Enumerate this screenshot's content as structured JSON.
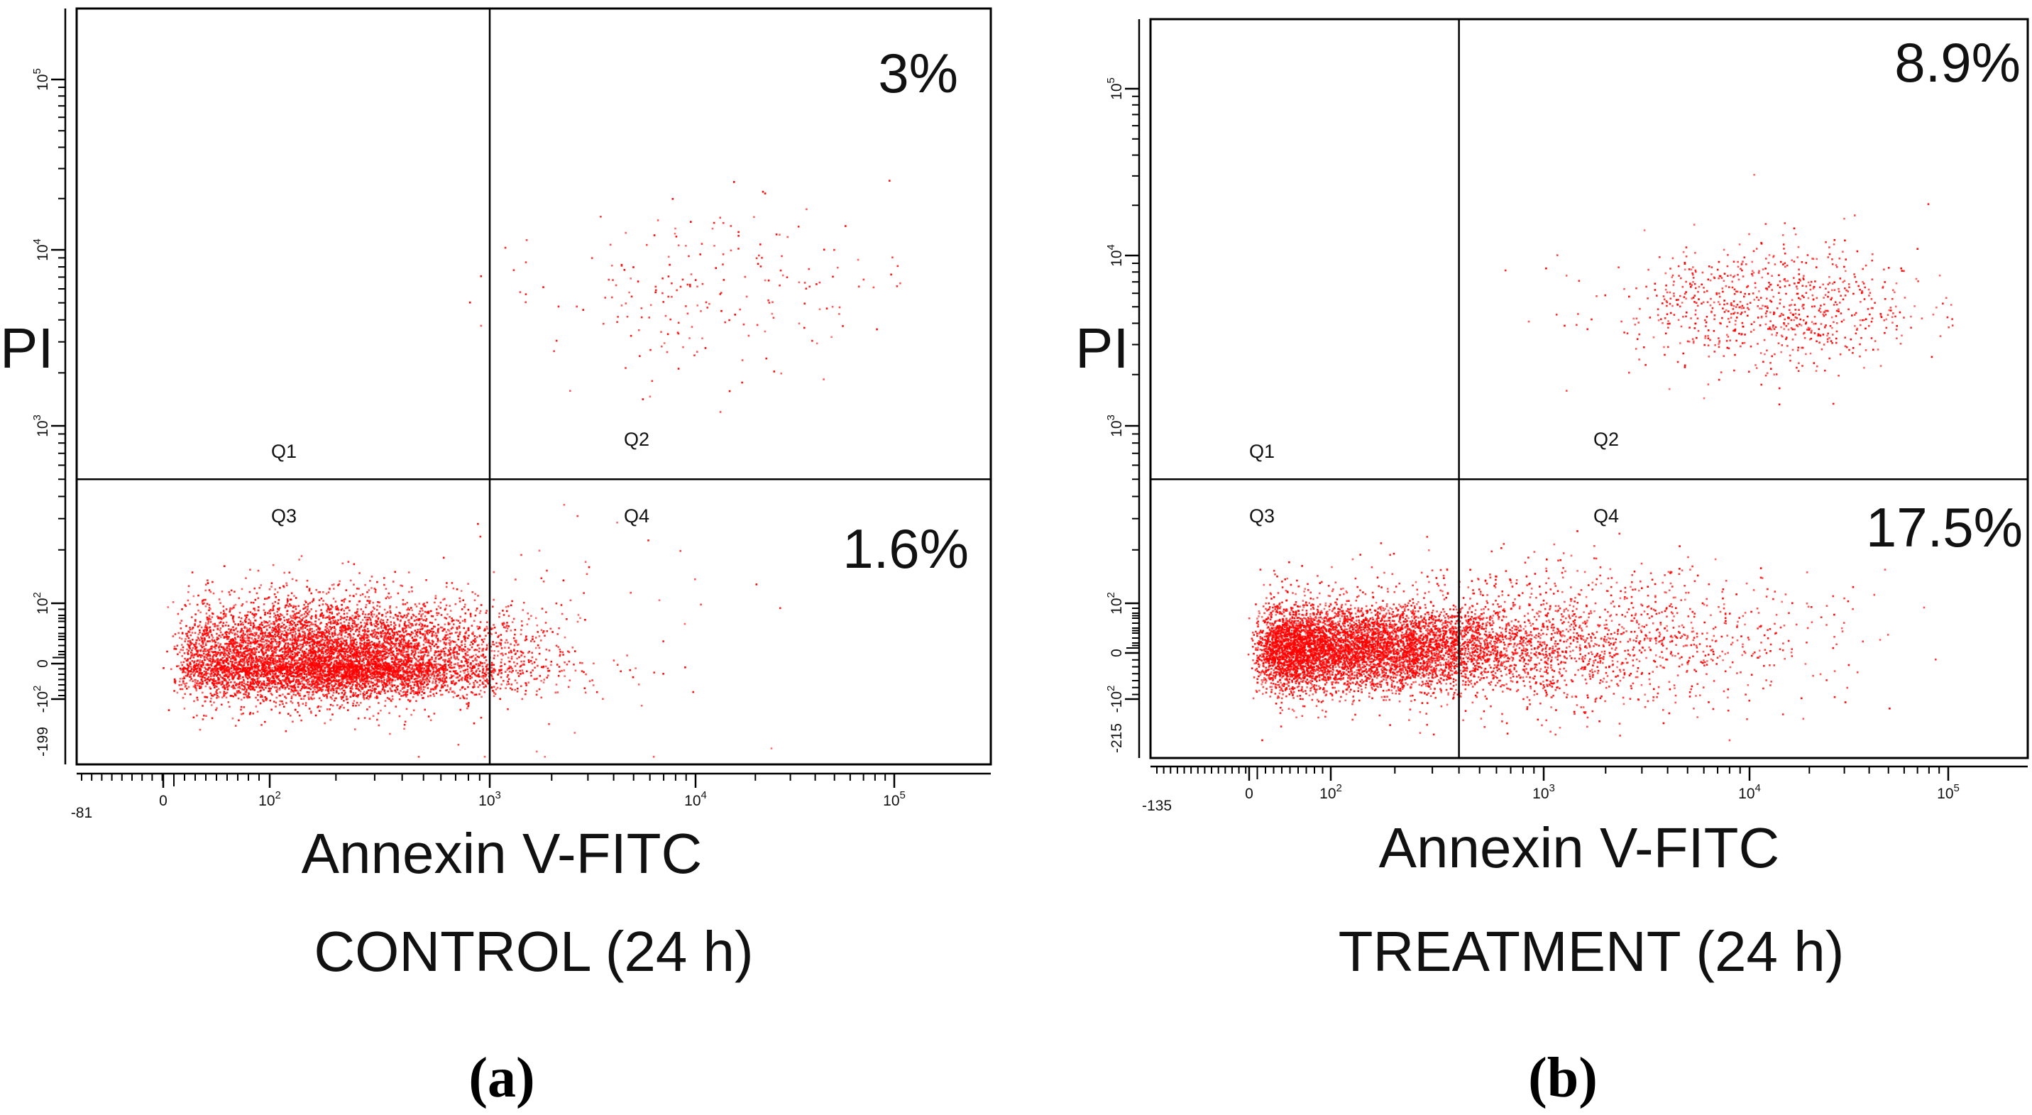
{
  "figure": {
    "colors": {
      "dot": "#ff0000",
      "axis": "#000000",
      "outlier": "#3fbf3f"
    },
    "panels_label_style": "bold-serif-parenthesized"
  },
  "chart_data": [
    {
      "type": "scatter",
      "panel_label": "a",
      "condition": "CONTROL (24 h)",
      "xlabel": "Annexin V-FITC",
      "ylabel": "PI",
      "x_scale": "biexponential",
      "y_scale": "biexponential",
      "x_min_label": "-81",
      "y_min_label": "-199",
      "x_ticks": [
        {
          "value": 0,
          "label": "0"
        },
        {
          "value": 100,
          "label": "10^2"
        },
        {
          "value": 1000,
          "label": "10^3"
        },
        {
          "value": 10000,
          "label": "10^4"
        },
        {
          "value": 100000,
          "label": "10^5"
        }
      ],
      "y_ticks": [
        {
          "value": -100,
          "label": "-10^2"
        },
        {
          "value": 0,
          "label": "0"
        },
        {
          "value": 100,
          "label": "10^2"
        },
        {
          "value": 1000,
          "label": "10^3"
        },
        {
          "value": 10000,
          "label": "10^4"
        },
        {
          "value": 100000,
          "label": "10^5"
        }
      ],
      "gate": {
        "x": 1000,
        "y": 500
      },
      "quadrants": [
        {
          "id": "Q1",
          "name": "Q1",
          "percent": null
        },
        {
          "id": "Q2",
          "name": "Q2",
          "percent": "3%"
        },
        {
          "id": "Q3",
          "name": "Q3",
          "percent": null
        },
        {
          "id": "Q4",
          "name": "Q4",
          "percent": "1.6%"
        }
      ],
      "populations": [
        {
          "region": "Q3",
          "count": 7800,
          "x_center": 190,
          "x_spread": 0.42,
          "y_center": 5,
          "y_spread": 50
        },
        {
          "region": "Q2",
          "count": 210,
          "x_center": 12000,
          "x_spread": 0.45,
          "y_center": 6000,
          "y_spread": 0.22
        },
        {
          "region": "Q4",
          "count": 60,
          "x_center": 3000,
          "x_spread": 0.45,
          "y_center": 40,
          "y_spread": 150
        }
      ]
    },
    {
      "type": "scatter",
      "panel_label": "b",
      "condition": "TREATMENT (24 h)",
      "xlabel": "Annexin V-FITC",
      "ylabel": "PI",
      "x_scale": "biexponential",
      "y_scale": "biexponential",
      "x_min_label": "-135",
      "y_min_label": "-215",
      "x_ticks": [
        {
          "value": 0,
          "label": "0"
        },
        {
          "value": 100,
          "label": "10^2"
        },
        {
          "value": 1000,
          "label": "10^3"
        },
        {
          "value": 10000,
          "label": "10^4"
        },
        {
          "value": 100000,
          "label": "10^5"
        }
      ],
      "y_ticks": [
        {
          "value": -100,
          "label": "-10^2"
        },
        {
          "value": 0,
          "label": "0"
        },
        {
          "value": 100,
          "label": "10^2"
        },
        {
          "value": 1000,
          "label": "10^3"
        },
        {
          "value": 10000,
          "label": "10^4"
        },
        {
          "value": 100000,
          "label": "10^5"
        }
      ],
      "gate": {
        "x": 400,
        "y": 500
      },
      "quadrants": [
        {
          "id": "Q1",
          "name": "Q1",
          "percent": null
        },
        {
          "id": "Q2",
          "name": "Q2",
          "percent": "8.9%"
        },
        {
          "id": "Q3",
          "name": "Q3",
          "percent": null
        },
        {
          "id": "Q4",
          "name": "Q4",
          "percent": "17.5%"
        }
      ],
      "populations": [
        {
          "region": "Q3",
          "count": 6200,
          "x_center": 130,
          "x_spread": 0.42,
          "y_center": 10,
          "y_spread": 45
        },
        {
          "region": "Q4",
          "count": 1500,
          "x_center": 1400,
          "x_spread": 0.55,
          "y_center": 25,
          "y_spread": 70
        },
        {
          "region": "Q2",
          "count": 820,
          "x_center": 13000,
          "x_spread": 0.38,
          "y_center": 5000,
          "y_spread": 0.18
        }
      ]
    }
  ]
}
